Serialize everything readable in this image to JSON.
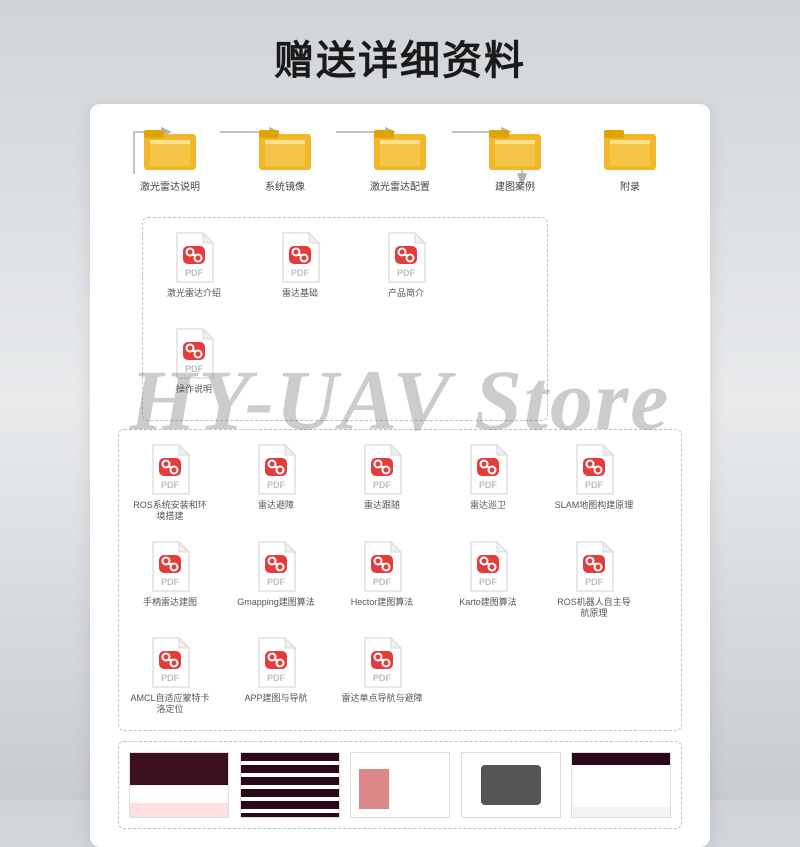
{
  "title": "赠送详细资料",
  "watermark": "HY-UAV Store",
  "colors": {
    "folder_body": "#f2b72a",
    "folder_tab": "#e0a400",
    "pdf_badge": "#e43b3b",
    "pdf_text": "#bdbdbd",
    "pdf_border": "#d9d9d9",
    "dashed_border": "#c0c0c0",
    "arrow": "#b0b0b0",
    "panel_bg": "#ffffff"
  },
  "folders": [
    {
      "label": "激光雷达说明"
    },
    {
      "label": "系统镜像"
    },
    {
      "label": "激光雷达配置"
    },
    {
      "label": "建图案例"
    },
    {
      "label": "附录"
    }
  ],
  "pdf_group_small": [
    {
      "label": "激光雷达介绍"
    },
    {
      "label": "雷达基础"
    },
    {
      "label": "产品简介"
    },
    {
      "label": "操作说明"
    }
  ],
  "pdf_group_large": [
    {
      "label": "ROS系统安装和环境搭建"
    },
    {
      "label": "雷达避障"
    },
    {
      "label": "雷达跟随"
    },
    {
      "label": "雷达巡卫"
    },
    {
      "label": "SLAM地图构建原理"
    },
    {
      "label": "手柄雷达建图"
    },
    {
      "label": "Gmapping建图算法"
    },
    {
      "label": "Hector建图算法"
    },
    {
      "label": "Karto建图算法"
    },
    {
      "label": "ROS机器人自主导航原理"
    },
    {
      "label": "AMCL自适应蒙特卡洛定位"
    },
    {
      "label": "APP建图与导航"
    },
    {
      "label": "雷达单点导航与避障"
    }
  ],
  "thumbs": [
    {
      "name": "screenshot-1"
    },
    {
      "name": "screenshot-2"
    },
    {
      "name": "screenshot-3"
    },
    {
      "name": "screenshot-4"
    },
    {
      "name": "screenshot-5"
    }
  ]
}
